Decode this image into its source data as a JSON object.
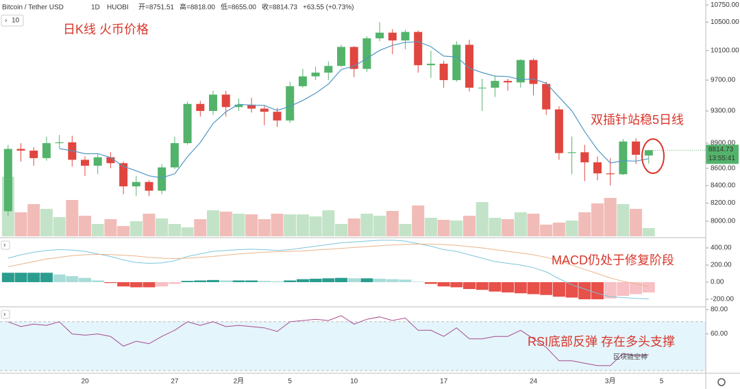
{
  "chart_data": {
    "type": "candlestick",
    "header": {
      "symbol": "Bitcoin / Tether USD",
      "interval": "1D",
      "exchange": "HUOBI",
      "ohlc": [
        "开=8751.51",
        "高=8818.00",
        "低=8655.00",
        "收=8814.73"
      ],
      "change": "+63.55 (+0.73%)",
      "indicator": "10"
    },
    "annotations": {
      "main": "日K线  火币价格",
      "ma": "双插针站稳5日线",
      "macd": "MACD仍处于修复阶段",
      "rsi": "RSI底部反弹   存在多头支撑",
      "watermark": "区块链空神"
    },
    "categories": [
      null,
      null,
      null,
      null,
      null,
      null,
      "20",
      null,
      null,
      null,
      null,
      null,
      null,
      "27",
      null,
      null,
      null,
      null,
      "2月",
      null,
      null,
      null,
      "5",
      null,
      null,
      null,
      null,
      "10",
      null,
      null,
      null,
      null,
      null,
      null,
      "17",
      null,
      null,
      null,
      null,
      null,
      null,
      "24",
      null,
      null,
      null,
      null,
      null,
      "3月",
      null,
      null,
      null
    ],
    "axis_extra_label": "5",
    "open": [
      8110,
      8830,
      8810,
      8720,
      8900,
      8910,
      8700,
      8630,
      8730,
      8660,
      8390,
      8440,
      8340,
      8610,
      8900,
      9390,
      9300,
      9510,
      9350,
      9380,
      9330,
      9290,
      9180,
      9620,
      9750,
      9800,
      9890,
      10150,
      9850,
      10270,
      10350,
      10240,
      10360,
      9900,
      9920,
      9700,
      10180,
      9600,
      9600,
      9690,
      9670,
      9970,
      9650,
      9320,
      8780,
      8790,
      8670,
      8540,
      8530,
      8920,
      8751.51
    ],
    "high": [
      8880,
      8900,
      8850,
      8980,
      9000,
      8990,
      8740,
      8770,
      8790,
      8680,
      8510,
      8460,
      8650,
      8980,
      9420,
      9430,
      9560,
      9560,
      9460,
      9470,
      9370,
      9340,
      9680,
      9850,
      9880,
      9950,
      10180,
      10160,
      10300,
      10500,
      10400,
      10390,
      10380,
      10100,
      9960,
      10230,
      10250,
      9720,
      9760,
      9720,
      9980,
      9990,
      9680,
      9360,
      8980,
      8880,
      8740,
      8720,
      8950,
      8960,
      8818
    ],
    "low": [
      8060,
      8680,
      8630,
      8690,
      8840,
      8620,
      8510,
      8530,
      8600,
      8300,
      8280,
      8280,
      8300,
      8590,
      8880,
      9230,
      9250,
      9230,
      9300,
      9280,
      9120,
      9100,
      9150,
      9600,
      9700,
      9700,
      9880,
      9740,
      9810,
      10230,
      10050,
      10120,
      9800,
      9730,
      9600,
      9680,
      9550,
      9300,
      9480,
      9560,
      9600,
      9500,
      9250,
      8700,
      8530,
      8450,
      8460,
      8400,
      8520,
      8650,
      8655
    ],
    "close": [
      8830,
      8810,
      8720,
      8900,
      8910,
      8700,
      8630,
      8730,
      8660,
      8390,
      8440,
      8340,
      8610,
      8900,
      9390,
      9300,
      9510,
      9350,
      9380,
      9330,
      9290,
      9180,
      9620,
      9750,
      9800,
      9890,
      10150,
      9850,
      10270,
      10350,
      10240,
      10360,
      9900,
      9920,
      9700,
      10180,
      9600,
      9600,
      9690,
      9670,
      9970,
      9650,
      9320,
      8780,
      8790,
      8670,
      8540,
      8530,
      8920,
      8760,
      8814.73
    ],
    "ma5": [
      null,
      null,
      null,
      null,
      8834,
      8808,
      8772,
      8774,
      8726,
      8622,
      8570,
      8512,
      8488,
      8536,
      8736,
      8908,
      9142,
      9290,
      9386,
      9374,
      9372,
      9306,
      9360,
      9434,
      9528,
      9648,
      9842,
      9888,
      9992,
      10102,
      10172,
      10214,
      10224,
      10154,
      10024,
      10012,
      9860,
      9800,
      9754,
      9748,
      9706,
      9716,
      9660,
      9478,
      9302,
      9042,
      8820,
      8662,
      8690,
      8684,
      8713
    ],
    "volume": [
      87,
      35,
      47,
      40,
      28,
      53,
      30,
      18,
      25,
      15,
      22,
      33,
      26,
      18,
      13,
      25,
      38,
      36,
      33,
      32,
      25,
      33,
      32,
      32,
      29,
      38,
      18,
      26,
      33,
      30,
      37,
      18,
      45,
      27,
      24,
      23,
      30,
      50,
      27,
      25,
      35,
      33,
      17,
      20,
      23,
      35,
      48,
      56,
      47,
      40,
      12
    ],
    "volume_lim": [
      0,
      100
    ],
    "up_color": "#53b36b",
    "down_color": "#e0463f",
    "up_volume_color": "#c3e3c8",
    "down_volume_color": "#f1bcb8",
    "ma_color": "#4f97c4",
    "log_scale": true,
    "ylim": [
      7837,
      10822
    ],
    "yticks": [
      {
        "value": 10750,
        "label": "10750.00"
      },
      {
        "value": 10500,
        "label": "10500.00"
      },
      {
        "value": 10100,
        "label": "10100.00"
      },
      {
        "value": 9700,
        "label": "9700.00"
      },
      {
        "value": 9300,
        "label": "9300.00"
      },
      {
        "value": 8900,
        "label": "8900.00"
      },
      {
        "value": 8600,
        "label": "8600.00"
      },
      {
        "value": 8400,
        "label": "8400.00"
      },
      {
        "value": 8200,
        "label": "8200.00"
      },
      {
        "value": 8000,
        "label": "8000.00"
      }
    ],
    "last_price_label": "8814.73",
    "countdown": "13:55:41",
    "macd": {
      "hist": [
        110,
        110,
        110,
        110,
        90,
        70,
        50,
        20,
        -10,
        -50,
        -60,
        -60,
        -50,
        -20,
        15,
        20,
        25,
        20,
        20,
        20,
        15,
        10,
        20,
        35,
        40,
        45,
        50,
        45,
        45,
        40,
        35,
        30,
        5,
        -20,
        -50,
        -60,
        -80,
        -90,
        -110,
        -120,
        -130,
        -140,
        -150,
        -170,
        -180,
        -200,
        -200,
        -190,
        -160,
        -140,
        -120
      ],
      "dif": [
        280,
        320,
        350,
        370,
        380,
        375,
        360,
        330,
        300,
        260,
        230,
        220,
        225,
        250,
        300,
        330,
        360,
        370,
        380,
        385,
        380,
        370,
        380,
        400,
        420,
        440,
        460,
        470,
        480,
        490,
        490,
        480,
        450,
        420,
        380,
        360,
        320,
        280,
        240,
        220,
        200,
        170,
        120,
        40,
        -30,
        -80,
        -130,
        -170,
        -180,
        -190,
        -195
      ],
      "dea": [
        180,
        210,
        240,
        270,
        290,
        310,
        320,
        325,
        322,
        315,
        305,
        290,
        280,
        275,
        280,
        290,
        300,
        315,
        330,
        340,
        350,
        355,
        360,
        365,
        375,
        385,
        395,
        405,
        415,
        425,
        435,
        440,
        445,
        445,
        440,
        430,
        415,
        400,
        380,
        360,
        340,
        320,
        290,
        250,
        200,
        150,
        100,
        50,
        10,
        -20,
        -50
      ],
      "ylim": [
        -280,
        496
      ],
      "yticks": [
        {
          "value": 400,
          "label": "400.00"
        },
        {
          "value": 200,
          "label": "200.00"
        },
        {
          "value": 0,
          "label": "0.00"
        },
        {
          "value": -200,
          "label": "-200.00"
        }
      ],
      "dif_color": "#7cc4dc",
      "dea_color": "#e9b48b",
      "grow_up": "#2a9d8f",
      "fade_up": "#a9dcd8",
      "grow_down": "#e8504a",
      "fade_down": "#f7c0c4"
    },
    "rsi": {
      "values": [
        70,
        66,
        68,
        67,
        70,
        60,
        59,
        60,
        58,
        50,
        54,
        52,
        58,
        63,
        70,
        67,
        70,
        66,
        67,
        66,
        65,
        62,
        70,
        71,
        72,
        71,
        75,
        68,
        72,
        74,
        71,
        73,
        63,
        63,
        58,
        65,
        56,
        56,
        58,
        58,
        63,
        56,
        49,
        38,
        38,
        36,
        34,
        34,
        44,
        42,
        43
      ],
      "ylim": [
        27.8,
        81.1
      ],
      "band": [
        30,
        70
      ],
      "yticks": [
        {
          "value": 80,
          "label": "80.00"
        },
        {
          "value": 60,
          "label": "60.00"
        }
      ],
      "color": "#a64a8e",
      "band_color": "#e4f5fb"
    }
  }
}
